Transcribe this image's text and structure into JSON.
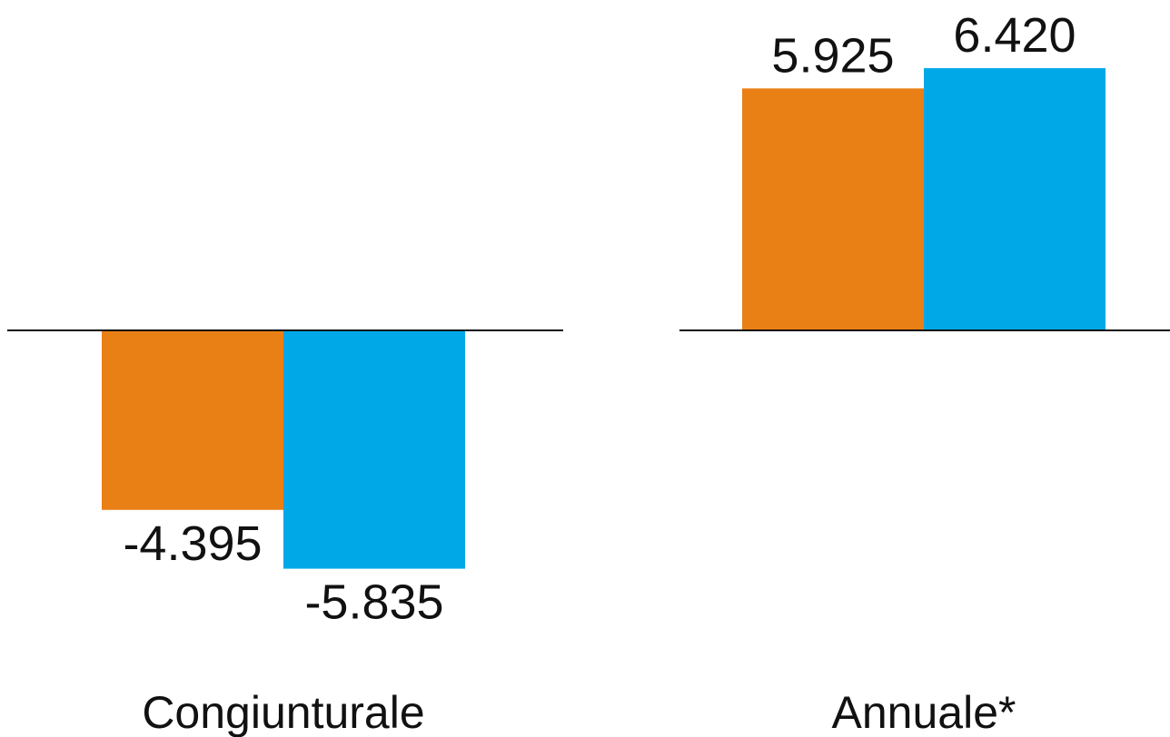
{
  "chart_data": {
    "type": "bar",
    "categories": [
      "Congiunturale",
      "Annuale*"
    ],
    "series": [
      {
        "values": [
          -4.395,
          5.925
        ],
        "color": "#E98016"
      },
      {
        "values": [
          -5.835,
          6.42
        ],
        "color": "#00A8E8"
      }
    ],
    "value_labels": [
      [
        "-4.395",
        "5.925"
      ],
      [
        "-5.835",
        "6.420"
      ]
    ],
    "title": "",
    "xlabel": "",
    "ylabel": "",
    "ylim": [
      -8,
      8
    ],
    "grid": false,
    "legend": "none",
    "baseline_color": "#111111"
  }
}
